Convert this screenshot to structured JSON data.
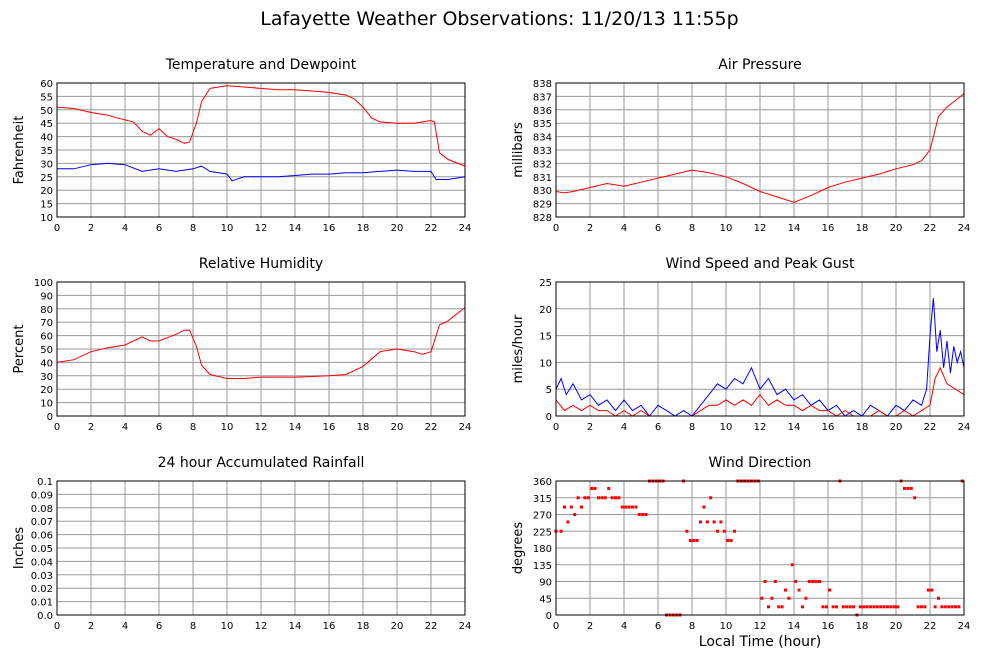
{
  "page": {
    "title": "Lafayette Weather Observations: 11/20/13 11:55p",
    "xlabel": "Local Time (hour)"
  },
  "colors": {
    "red": "#ff0000",
    "blue": "#0000ff",
    "grid": "#999999",
    "axis": "#000000"
  },
  "chart_data": [
    {
      "id": "temp",
      "type": "line",
      "title": "Temperature and Dewpoint",
      "ylabel": "Fahrenheit",
      "xlim": [
        0,
        24
      ],
      "ylim": [
        10,
        60
      ],
      "xticks": [
        0,
        2,
        4,
        6,
        8,
        10,
        12,
        14,
        16,
        18,
        20,
        22,
        24
      ],
      "yticks": [
        10,
        15,
        20,
        25,
        30,
        35,
        40,
        45,
        50,
        55,
        60
      ],
      "grid": true,
      "series": [
        {
          "color": "#ff0000",
          "x": [
            0,
            1,
            2,
            3,
            3.5,
            4.5,
            5,
            5.5,
            6,
            6.5,
            7,
            7.5,
            7.8,
            8.2,
            8.5,
            9,
            9.5,
            10,
            11,
            12,
            13,
            14,
            15,
            16,
            17,
            17.5,
            18,
            18.5,
            19,
            20,
            21,
            22,
            22.2,
            22.5,
            23,
            24
          ],
          "y": [
            51,
            50.5,
            49,
            48,
            47,
            45.5,
            42,
            40.5,
            43,
            40,
            39,
            37.5,
            38,
            45,
            53,
            58,
            58.5,
            59,
            58.5,
            58,
            57.5,
            57.5,
            57,
            56.5,
            55.5,
            54,
            51,
            47,
            45.5,
            45,
            45,
            46,
            45.5,
            34,
            31.5,
            29
          ]
        },
        {
          "color": "#0000ff",
          "x": [
            0,
            1,
            2,
            3,
            4,
            5,
            6,
            7,
            8,
            8.5,
            9,
            10,
            10.3,
            11,
            12,
            13,
            14,
            15,
            16,
            17,
            18,
            19,
            20,
            21,
            22,
            22.3,
            23,
            24
          ],
          "y": [
            28,
            28,
            29.5,
            30,
            29.5,
            27,
            28,
            27,
            28,
            29,
            27,
            26,
            23.5,
            25,
            25,
            25,
            25.5,
            26,
            26,
            26.5,
            26.5,
            27,
            27.5,
            27,
            27,
            24,
            24,
            25
          ]
        }
      ]
    },
    {
      "id": "pressure",
      "type": "line",
      "title": "Air Pressure",
      "ylabel": "millibars",
      "xlim": [
        0,
        24
      ],
      "ylim": [
        828,
        838
      ],
      "xticks": [
        0,
        2,
        4,
        6,
        8,
        10,
        12,
        14,
        16,
        18,
        20,
        22,
        24
      ],
      "yticks": [
        828,
        829,
        830,
        831,
        832,
        833,
        834,
        835,
        836,
        837,
        838
      ],
      "grid": true,
      "series": [
        {
          "color": "#ff0000",
          "x": [
            0,
            0.5,
            1,
            2,
            3,
            4,
            5,
            6,
            7,
            8,
            9,
            10,
            11,
            12,
            13,
            14,
            15,
            16,
            17,
            18,
            19,
            20,
            21,
            21.5,
            22,
            22.5,
            23,
            23.5,
            24
          ],
          "y": [
            829.9,
            829.8,
            829.9,
            830.2,
            830.5,
            830.3,
            830.6,
            830.9,
            831.2,
            831.5,
            831.3,
            831,
            830.5,
            829.9,
            829.5,
            829.1,
            829.6,
            830.2,
            830.6,
            830.9,
            831.2,
            831.6,
            831.9,
            832.2,
            833,
            835.5,
            836.2,
            836.7,
            837.2
          ]
        }
      ]
    },
    {
      "id": "humidity",
      "type": "line",
      "title": "Relative Humidity",
      "ylabel": "Percent",
      "xlim": [
        0,
        24
      ],
      "ylim": [
        0,
        100
      ],
      "xticks": [
        0,
        2,
        4,
        6,
        8,
        10,
        12,
        14,
        16,
        18,
        20,
        22,
        24
      ],
      "yticks": [
        0,
        10,
        20,
        30,
        40,
        50,
        60,
        70,
        80,
        90,
        100
      ],
      "grid": true,
      "series": [
        {
          "color": "#ff0000",
          "x": [
            0,
            1,
            2,
            3,
            4,
            5,
            5.5,
            6,
            7,
            7.5,
            7.8,
            8.2,
            8.5,
            9,
            10,
            11,
            12,
            13,
            14,
            15,
            16,
            17,
            18,
            19,
            20,
            21,
            21.5,
            22,
            22.3,
            22.5,
            23,
            24
          ],
          "y": [
            40,
            42,
            48,
            51,
            53,
            59,
            56,
            56,
            61,
            64,
            64,
            52,
            38,
            31,
            28,
            28,
            29,
            29,
            29,
            29.5,
            30,
            31,
            37,
            48,
            50,
            48,
            46,
            48,
            60,
            68,
            71,
            81
          ]
        }
      ]
    },
    {
      "id": "wind",
      "type": "line",
      "title": "Wind Speed and Peak Gust",
      "ylabel": "miles/hour",
      "xlim": [
        0,
        24
      ],
      "ylim": [
        0,
        25
      ],
      "xticks": [
        0,
        2,
        4,
        6,
        8,
        10,
        12,
        14,
        16,
        18,
        20,
        22,
        24
      ],
      "yticks": [
        0,
        5,
        10,
        15,
        20,
        25
      ],
      "grid": true,
      "series": [
        {
          "color": "#0000ff",
          "x": [
            0,
            0.3,
            0.6,
            1,
            1.5,
            2,
            2.5,
            3,
            3.5,
            4,
            4.5,
            5,
            5.5,
            6,
            6.5,
            7,
            7.5,
            8,
            8.5,
            9,
            9.5,
            10,
            10.5,
            11,
            11.5,
            12,
            12.5,
            13,
            13.5,
            14,
            14.5,
            15,
            15.5,
            16,
            16.5,
            17,
            17.5,
            18,
            18.5,
            19,
            19.5,
            20,
            20.5,
            21,
            21.5,
            21.8,
            22,
            22.2,
            22.4,
            22.6,
            22.8,
            23,
            23.2,
            23.4,
            23.6,
            23.8,
            24
          ],
          "y": [
            5,
            7,
            4,
            6,
            3,
            4,
            2,
            3,
            1,
            3,
            1,
            2,
            0,
            2,
            1,
            0,
            1,
            0,
            2,
            4,
            6,
            5,
            7,
            6,
            9,
            5,
            7,
            4,
            5,
            3,
            4,
            2,
            3,
            1,
            2,
            0,
            1,
            0,
            2,
            1,
            0,
            2,
            1,
            3,
            2,
            5,
            15,
            22,
            12,
            16,
            9,
            14,
            8,
            13,
            10,
            12,
            9
          ]
        },
        {
          "color": "#ff0000",
          "x": [
            0,
            0.5,
            1,
            1.5,
            2,
            2.5,
            3,
            3.5,
            4,
            4.5,
            5,
            5.5,
            6,
            6.5,
            7,
            7.5,
            8,
            8.5,
            9,
            9.5,
            10,
            10.5,
            11,
            11.5,
            12,
            12.5,
            13,
            13.5,
            14,
            14.5,
            15,
            15.5,
            16,
            16.5,
            17,
            17.5,
            18,
            18.5,
            19,
            19.5,
            20,
            20.5,
            21,
            21.5,
            22,
            22.3,
            22.6,
            23,
            23.5,
            24
          ],
          "y": [
            3,
            1,
            2,
            1,
            2,
            1,
            1,
            0,
            1,
            0,
            1,
            0,
            0,
            0,
            0,
            0,
            0,
            1,
            2,
            2,
            3,
            2,
            3,
            2,
            4,
            2,
            3,
            2,
            2,
            1,
            2,
            1,
            1,
            0,
            1,
            0,
            0,
            0,
            1,
            0,
            0,
            1,
            0,
            1,
            2,
            7,
            9,
            6,
            5,
            4
          ]
        }
      ]
    },
    {
      "id": "rain",
      "type": "line",
      "title": "24 hour Accumulated Rainfall",
      "ylabel": "Inches",
      "xlim": [
        0,
        24
      ],
      "ylim": [
        0,
        0.1
      ],
      "xticks": [
        0,
        2,
        4,
        6,
        8,
        10,
        12,
        14,
        16,
        18,
        20,
        22,
        24
      ],
      "yticks": [
        "0.0",
        "0.01",
        "0.02",
        "0.03",
        "0.04",
        "0.05",
        "0.06",
        "0.07",
        "0.08",
        "0.09",
        "0.1"
      ],
      "grid": true,
      "series": [
        {
          "color": "#ff0000",
          "x": [
            0,
            24
          ],
          "y": [
            0,
            0
          ]
        }
      ]
    },
    {
      "id": "direction",
      "type": "scatter",
      "title": "Wind Direction",
      "ylabel": "degrees",
      "xlim": [
        0,
        24
      ],
      "ylim": [
        0,
        360
      ],
      "xticks": [
        0,
        2,
        4,
        6,
        8,
        10,
        12,
        14,
        16,
        18,
        20,
        22,
        24
      ],
      "yticks": [
        0,
        45,
        90,
        135,
        180,
        225,
        270,
        315,
        360
      ],
      "grid": true,
      "series": [
        {
          "color": "#ff0000",
          "x": [
            0,
            0.3,
            0.5,
            0.7,
            0.9,
            1.1,
            1.3,
            1.5,
            1.7,
            1.9,
            2.1,
            2.3,
            2.5,
            2.7,
            2.9,
            3.1,
            3.3,
            3.5,
            3.7,
            3.9,
            4.1,
            4.3,
            4.5,
            4.7,
            4.9,
            5.1,
            5.3,
            5.5,
            5.7,
            5.9,
            6.1,
            6.3,
            6.5,
            6.7,
            6.9,
            7.1,
            7.3,
            7.5,
            7.7,
            7.9,
            8.1,
            8.3,
            8.5,
            8.7,
            8.9,
            9.1,
            9.3,
            9.5,
            9.7,
            9.9,
            10.1,
            10.3,
            10.5,
            10.7,
            10.9,
            11.1,
            11.3,
            11.5,
            11.7,
            11.9,
            12.1,
            12.3,
            12.5,
            12.7,
            12.9,
            13.1,
            13.3,
            13.5,
            13.7,
            13.9,
            14.1,
            14.3,
            14.5,
            14.7,
            14.9,
            15.1,
            15.3,
            15.5,
            15.7,
            15.9,
            16.1,
            16.3,
            16.5,
            16.7,
            16.9,
            17.1,
            17.3,
            17.5,
            17.7,
            17.9,
            18.1,
            18.3,
            18.5,
            18.7,
            18.9,
            19.1,
            19.3,
            19.5,
            19.7,
            19.9,
            20.1,
            20.3,
            20.5,
            20.7,
            20.9,
            21.1,
            21.3,
            21.5,
            21.7,
            21.9,
            22.1,
            22.3,
            22.5,
            22.7,
            22.9,
            23.1,
            23.3,
            23.5,
            23.7,
            23.9
          ],
          "y": [
            225,
            225,
            290,
            250,
            290,
            270,
            315,
            290,
            315,
            315,
            340,
            340,
            315,
            315,
            315,
            340,
            315,
            315,
            315,
            290,
            290,
            290,
            290,
            290,
            270,
            270,
            270,
            360,
            360,
            360,
            360,
            360,
            0,
            0,
            0,
            0,
            0,
            360,
            225,
            200,
            200,
            200,
            250,
            290,
            250,
            315,
            250,
            225,
            250,
            225,
            200,
            200,
            225,
            360,
            360,
            360,
            360,
            360,
            360,
            360,
            45,
            90,
            22,
            45,
            90,
            22,
            22,
            67,
            45,
            135,
            90,
            67,
            22,
            45,
            90,
            90,
            90,
            90,
            22,
            22,
            67,
            22,
            22,
            360,
            22,
            22,
            22,
            22,
            0,
            22,
            22,
            22,
            22,
            22,
            22,
            22,
            22,
            22,
            22,
            22,
            22,
            360,
            340,
            340,
            340,
            315,
            22,
            22,
            22,
            67,
            67,
            22,
            45,
            22,
            22,
            22,
            22,
            22,
            22,
            360
          ]
        }
      ]
    }
  ]
}
